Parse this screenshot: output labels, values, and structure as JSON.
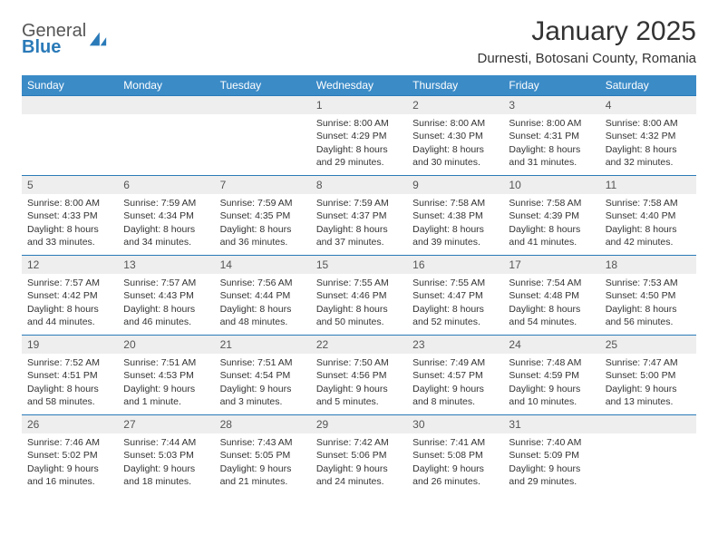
{
  "logo": {
    "general": "General",
    "blue": "Blue"
  },
  "title": "January 2025",
  "location": "Durnesti, Botosani County, Romania",
  "colors": {
    "header_bg": "#3b8bc7",
    "header_text": "#ffffff",
    "border": "#2a7ab8",
    "daynum_bg": "#eeeeee",
    "text": "#333333",
    "logo_gray": "#555555",
    "logo_blue": "#2a7ab8",
    "background": "#ffffff"
  },
  "weekdays": [
    "Sunday",
    "Monday",
    "Tuesday",
    "Wednesday",
    "Thursday",
    "Friday",
    "Saturday"
  ],
  "weeks": [
    [
      {
        "empty": true
      },
      {
        "empty": true
      },
      {
        "empty": true
      },
      {
        "n": "1",
        "l1": "Sunrise: 8:00 AM",
        "l2": "Sunset: 4:29 PM",
        "l3": "Daylight: 8 hours",
        "l4": "and 29 minutes."
      },
      {
        "n": "2",
        "l1": "Sunrise: 8:00 AM",
        "l2": "Sunset: 4:30 PM",
        "l3": "Daylight: 8 hours",
        "l4": "and 30 minutes."
      },
      {
        "n": "3",
        "l1": "Sunrise: 8:00 AM",
        "l2": "Sunset: 4:31 PM",
        "l3": "Daylight: 8 hours",
        "l4": "and 31 minutes."
      },
      {
        "n": "4",
        "l1": "Sunrise: 8:00 AM",
        "l2": "Sunset: 4:32 PM",
        "l3": "Daylight: 8 hours",
        "l4": "and 32 minutes."
      }
    ],
    [
      {
        "n": "5",
        "l1": "Sunrise: 8:00 AM",
        "l2": "Sunset: 4:33 PM",
        "l3": "Daylight: 8 hours",
        "l4": "and 33 minutes."
      },
      {
        "n": "6",
        "l1": "Sunrise: 7:59 AM",
        "l2": "Sunset: 4:34 PM",
        "l3": "Daylight: 8 hours",
        "l4": "and 34 minutes."
      },
      {
        "n": "7",
        "l1": "Sunrise: 7:59 AM",
        "l2": "Sunset: 4:35 PM",
        "l3": "Daylight: 8 hours",
        "l4": "and 36 minutes."
      },
      {
        "n": "8",
        "l1": "Sunrise: 7:59 AM",
        "l2": "Sunset: 4:37 PM",
        "l3": "Daylight: 8 hours",
        "l4": "and 37 minutes."
      },
      {
        "n": "9",
        "l1": "Sunrise: 7:58 AM",
        "l2": "Sunset: 4:38 PM",
        "l3": "Daylight: 8 hours",
        "l4": "and 39 minutes."
      },
      {
        "n": "10",
        "l1": "Sunrise: 7:58 AM",
        "l2": "Sunset: 4:39 PM",
        "l3": "Daylight: 8 hours",
        "l4": "and 41 minutes."
      },
      {
        "n": "11",
        "l1": "Sunrise: 7:58 AM",
        "l2": "Sunset: 4:40 PM",
        "l3": "Daylight: 8 hours",
        "l4": "and 42 minutes."
      }
    ],
    [
      {
        "n": "12",
        "l1": "Sunrise: 7:57 AM",
        "l2": "Sunset: 4:42 PM",
        "l3": "Daylight: 8 hours",
        "l4": "and 44 minutes."
      },
      {
        "n": "13",
        "l1": "Sunrise: 7:57 AM",
        "l2": "Sunset: 4:43 PM",
        "l3": "Daylight: 8 hours",
        "l4": "and 46 minutes."
      },
      {
        "n": "14",
        "l1": "Sunrise: 7:56 AM",
        "l2": "Sunset: 4:44 PM",
        "l3": "Daylight: 8 hours",
        "l4": "and 48 minutes."
      },
      {
        "n": "15",
        "l1": "Sunrise: 7:55 AM",
        "l2": "Sunset: 4:46 PM",
        "l3": "Daylight: 8 hours",
        "l4": "and 50 minutes."
      },
      {
        "n": "16",
        "l1": "Sunrise: 7:55 AM",
        "l2": "Sunset: 4:47 PM",
        "l3": "Daylight: 8 hours",
        "l4": "and 52 minutes."
      },
      {
        "n": "17",
        "l1": "Sunrise: 7:54 AM",
        "l2": "Sunset: 4:48 PM",
        "l3": "Daylight: 8 hours",
        "l4": "and 54 minutes."
      },
      {
        "n": "18",
        "l1": "Sunrise: 7:53 AM",
        "l2": "Sunset: 4:50 PM",
        "l3": "Daylight: 8 hours",
        "l4": "and 56 minutes."
      }
    ],
    [
      {
        "n": "19",
        "l1": "Sunrise: 7:52 AM",
        "l2": "Sunset: 4:51 PM",
        "l3": "Daylight: 8 hours",
        "l4": "and 58 minutes."
      },
      {
        "n": "20",
        "l1": "Sunrise: 7:51 AM",
        "l2": "Sunset: 4:53 PM",
        "l3": "Daylight: 9 hours",
        "l4": "and 1 minute."
      },
      {
        "n": "21",
        "l1": "Sunrise: 7:51 AM",
        "l2": "Sunset: 4:54 PM",
        "l3": "Daylight: 9 hours",
        "l4": "and 3 minutes."
      },
      {
        "n": "22",
        "l1": "Sunrise: 7:50 AM",
        "l2": "Sunset: 4:56 PM",
        "l3": "Daylight: 9 hours",
        "l4": "and 5 minutes."
      },
      {
        "n": "23",
        "l1": "Sunrise: 7:49 AM",
        "l2": "Sunset: 4:57 PM",
        "l3": "Daylight: 9 hours",
        "l4": "and 8 minutes."
      },
      {
        "n": "24",
        "l1": "Sunrise: 7:48 AM",
        "l2": "Sunset: 4:59 PM",
        "l3": "Daylight: 9 hours",
        "l4": "and 10 minutes."
      },
      {
        "n": "25",
        "l1": "Sunrise: 7:47 AM",
        "l2": "Sunset: 5:00 PM",
        "l3": "Daylight: 9 hours",
        "l4": "and 13 minutes."
      }
    ],
    [
      {
        "n": "26",
        "l1": "Sunrise: 7:46 AM",
        "l2": "Sunset: 5:02 PM",
        "l3": "Daylight: 9 hours",
        "l4": "and 16 minutes."
      },
      {
        "n": "27",
        "l1": "Sunrise: 7:44 AM",
        "l2": "Sunset: 5:03 PM",
        "l3": "Daylight: 9 hours",
        "l4": "and 18 minutes."
      },
      {
        "n": "28",
        "l1": "Sunrise: 7:43 AM",
        "l2": "Sunset: 5:05 PM",
        "l3": "Daylight: 9 hours",
        "l4": "and 21 minutes."
      },
      {
        "n": "29",
        "l1": "Sunrise: 7:42 AM",
        "l2": "Sunset: 5:06 PM",
        "l3": "Daylight: 9 hours",
        "l4": "and 24 minutes."
      },
      {
        "n": "30",
        "l1": "Sunrise: 7:41 AM",
        "l2": "Sunset: 5:08 PM",
        "l3": "Daylight: 9 hours",
        "l4": "and 26 minutes."
      },
      {
        "n": "31",
        "l1": "Sunrise: 7:40 AM",
        "l2": "Sunset: 5:09 PM",
        "l3": "Daylight: 9 hours",
        "l4": "and 29 minutes."
      },
      {
        "empty": true
      }
    ]
  ]
}
